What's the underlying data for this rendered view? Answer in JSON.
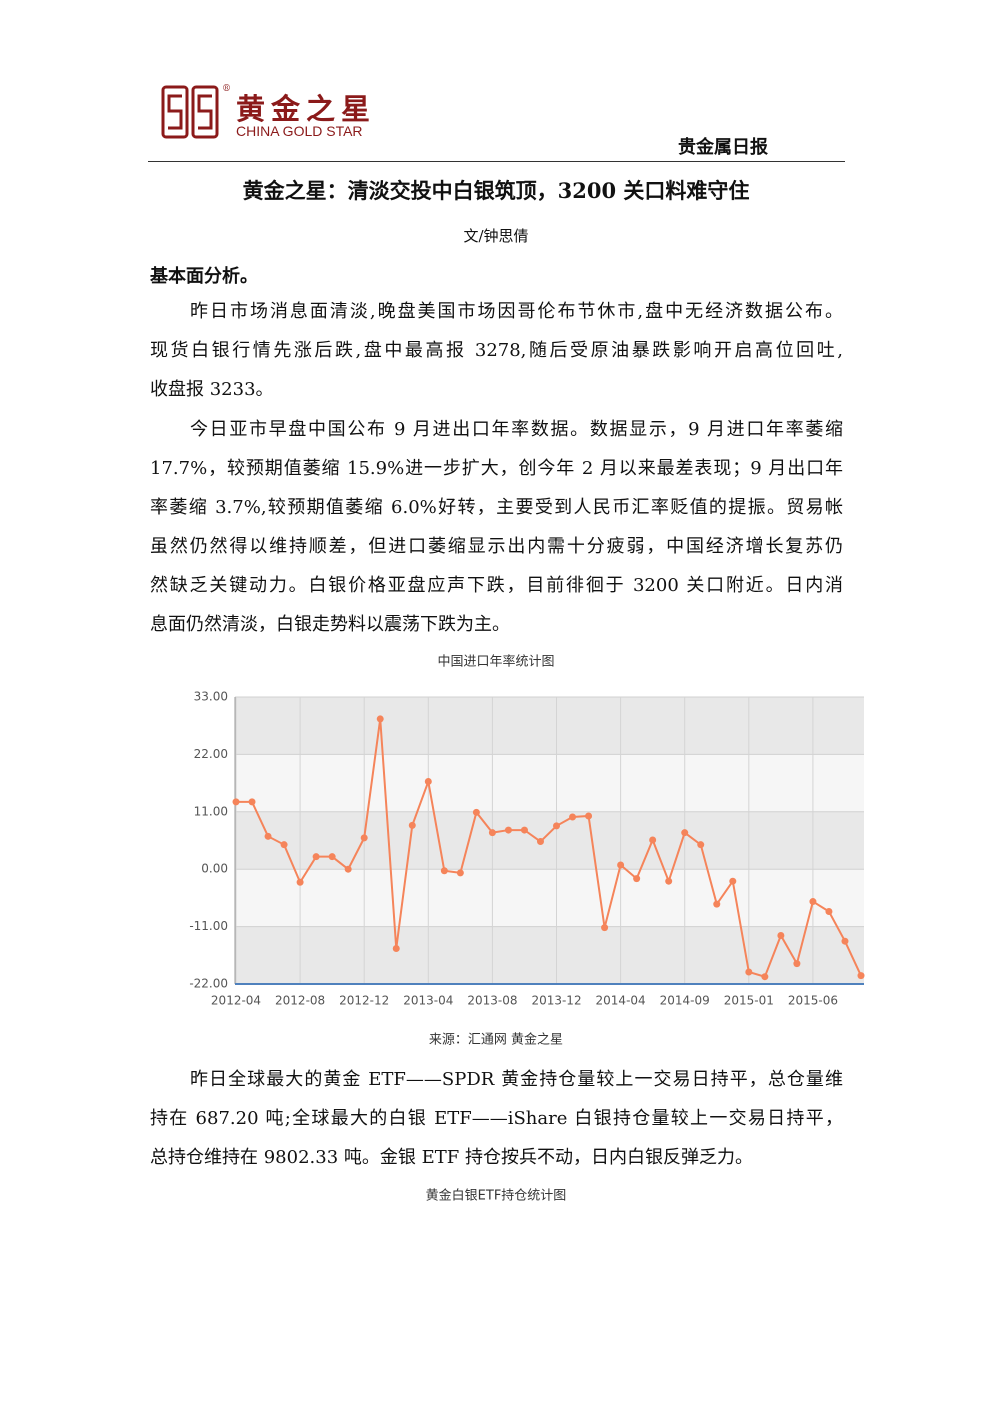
{
  "header": {
    "logo_cn": "黄金之星",
    "logo_en": "CHINA GOLD STAR",
    "registered": "®",
    "report_name": "贵金属日报"
  },
  "article": {
    "title": "黄金之星：清淡交投中白银筑顶，3200 关口料难守住",
    "author": "文/钟思倩",
    "section": "基本面分析。",
    "paragraphs": [
      [
        "昨日市场消息面清淡,晚盘美国市场因哥伦布节休市,盘中无经济数据公布。",
        "现货白银行情先涨后跌,盘中最高报 3278,随后受原油暴跌影响开启高位回吐,",
        "收盘报 3233。"
      ],
      [
        "今日亚市早盘中国公布 9 月进出口年率数据。数据显示，9 月进口年率萎缩",
        "17.7%，较预期值萎缩 15.9%进一步扩大，创今年 2 月以来最差表现；9 月出口年",
        "率萎缩 3.7%,较预期值萎缩 6.0%好转，主要受到人民币汇率贬值的提振。贸易帐",
        "虽然仍然得以维持顺差，但进口萎缩显示出内需十分疲弱，中国经济增长复苏仍",
        "然缺乏关键动力。白银价格亚盘应声下跌，目前徘徊于 3200 关口附近。日内消",
        "息面仍然清淡，白银走势料以震荡下跌为主。"
      ]
    ]
  },
  "chart_data": {
    "type": "line",
    "title": "中国进口年率统计图",
    "source": "来源：汇通网  黄金之星",
    "categories": [
      "2012-04",
      null,
      null,
      null,
      "2012-08",
      null,
      null,
      null,
      "2012-12",
      null,
      null,
      null,
      "2013-04",
      null,
      null,
      null,
      "2013-08",
      null,
      null,
      null,
      "2013-12",
      null,
      null,
      null,
      "2014-04",
      null,
      null,
      null,
      "2014-09",
      null,
      null,
      null,
      "2015-01",
      null,
      null,
      null,
      "2015-06",
      null,
      null,
      null
    ],
    "values": [
      12.9,
      12.9,
      6.3,
      4.7,
      -2.5,
      2.4,
      2.4,
      0.0,
      6.0,
      28.8,
      -15.2,
      8.4,
      16.8,
      -0.3,
      -0.7,
      10.9,
      7.0,
      7.5,
      7.5,
      5.3,
      8.3,
      10.0,
      10.2,
      -11.2,
      0.8,
      -1.8,
      5.6,
      -2.3,
      7.0,
      4.7,
      -6.7,
      -2.3,
      -19.7,
      -20.6,
      -12.7,
      -18.1,
      -6.2,
      -8.1,
      -13.8,
      -20.4
    ],
    "color": "#f5845a",
    "ylim": [
      -22,
      33
    ],
    "yticks": [
      {
        "value": -22,
        "label": "-22.00"
      },
      {
        "value": -11,
        "label": "-11.00"
      },
      {
        "value": 0,
        "label": "0.00"
      },
      {
        "value": 11,
        "label": "11.00"
      },
      {
        "value": 22,
        "label": "22.00"
      },
      {
        "value": 33,
        "label": "33.00"
      }
    ],
    "grid": true
  },
  "article_2": {
    "paragraphs": [
      [
        "昨日全球最大的黄金 ETF——SPDR 黄金持仓量较上一交易日持平，总仓量维",
        "持在 687.20 吨;全球最大的白银 ETF——iShare 白银持仓量较上一交易日持平，",
        "总持仓维持在 9802.33 吨。金银 ETF 持仓按兵不动，日内白银反弹乏力。"
      ]
    ],
    "chart_title": "黄金白银ETF持仓统计图"
  }
}
